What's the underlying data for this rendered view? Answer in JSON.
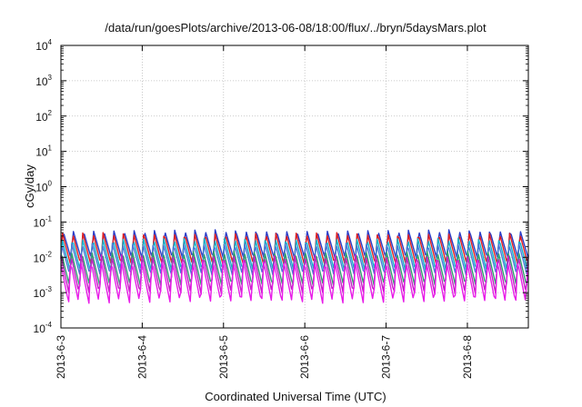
{
  "chart_data": {
    "type": "line",
    "title": "/data/run/goesPlots/archive/2013-06-08/18:00/flux/../bryn/5daysMars.plot",
    "xlabel": "Coordinated Universal Time (UTC)",
    "ylabel": "cGy/day",
    "y_scale": "log",
    "ylim": [
      0.0001,
      10000
    ],
    "y_ticks": [
      {
        "base": "10",
        "exp": "4"
      },
      {
        "base": "10",
        "exp": "3"
      },
      {
        "base": "10",
        "exp": "2"
      },
      {
        "base": "10",
        "exp": "1"
      },
      {
        "base": "10",
        "exp": "0"
      },
      {
        "base": "10",
        "exp": "-1"
      },
      {
        "base": "10",
        "exp": "-2"
      },
      {
        "base": "10",
        "exp": "-3"
      },
      {
        "base": "10",
        "exp": "-4"
      }
    ],
    "xlim": [
      "2013-06-03",
      "2013-06-08 18:00"
    ],
    "x_ticks": [
      "2013-6-3",
      "2013-6-4",
      "2013-6-5",
      "2013-6-6",
      "2013-6-7",
      "2013-6-8"
    ],
    "grid": true,
    "cycle_hours": 3,
    "series": [
      {
        "color": "#2a3cc8",
        "peak": 0.06,
        "trough": 0.009
      },
      {
        "color": "#e02020",
        "peak": 0.05,
        "trough": 0.006
      },
      {
        "color": "#18b0c8",
        "peak": 0.035,
        "trough": 0.004
      },
      {
        "color": "#4a7ad8",
        "peak": 0.025,
        "trough": 0.003
      },
      {
        "color": "#30a070",
        "peak": 0.015,
        "trough": 0.0015
      },
      {
        "color": "#c020c0",
        "peak": 0.012,
        "trough": 0.0009
      },
      {
        "color": "#e81ce8",
        "peak": 0.008,
        "trough": 0.0005
      }
    ]
  }
}
